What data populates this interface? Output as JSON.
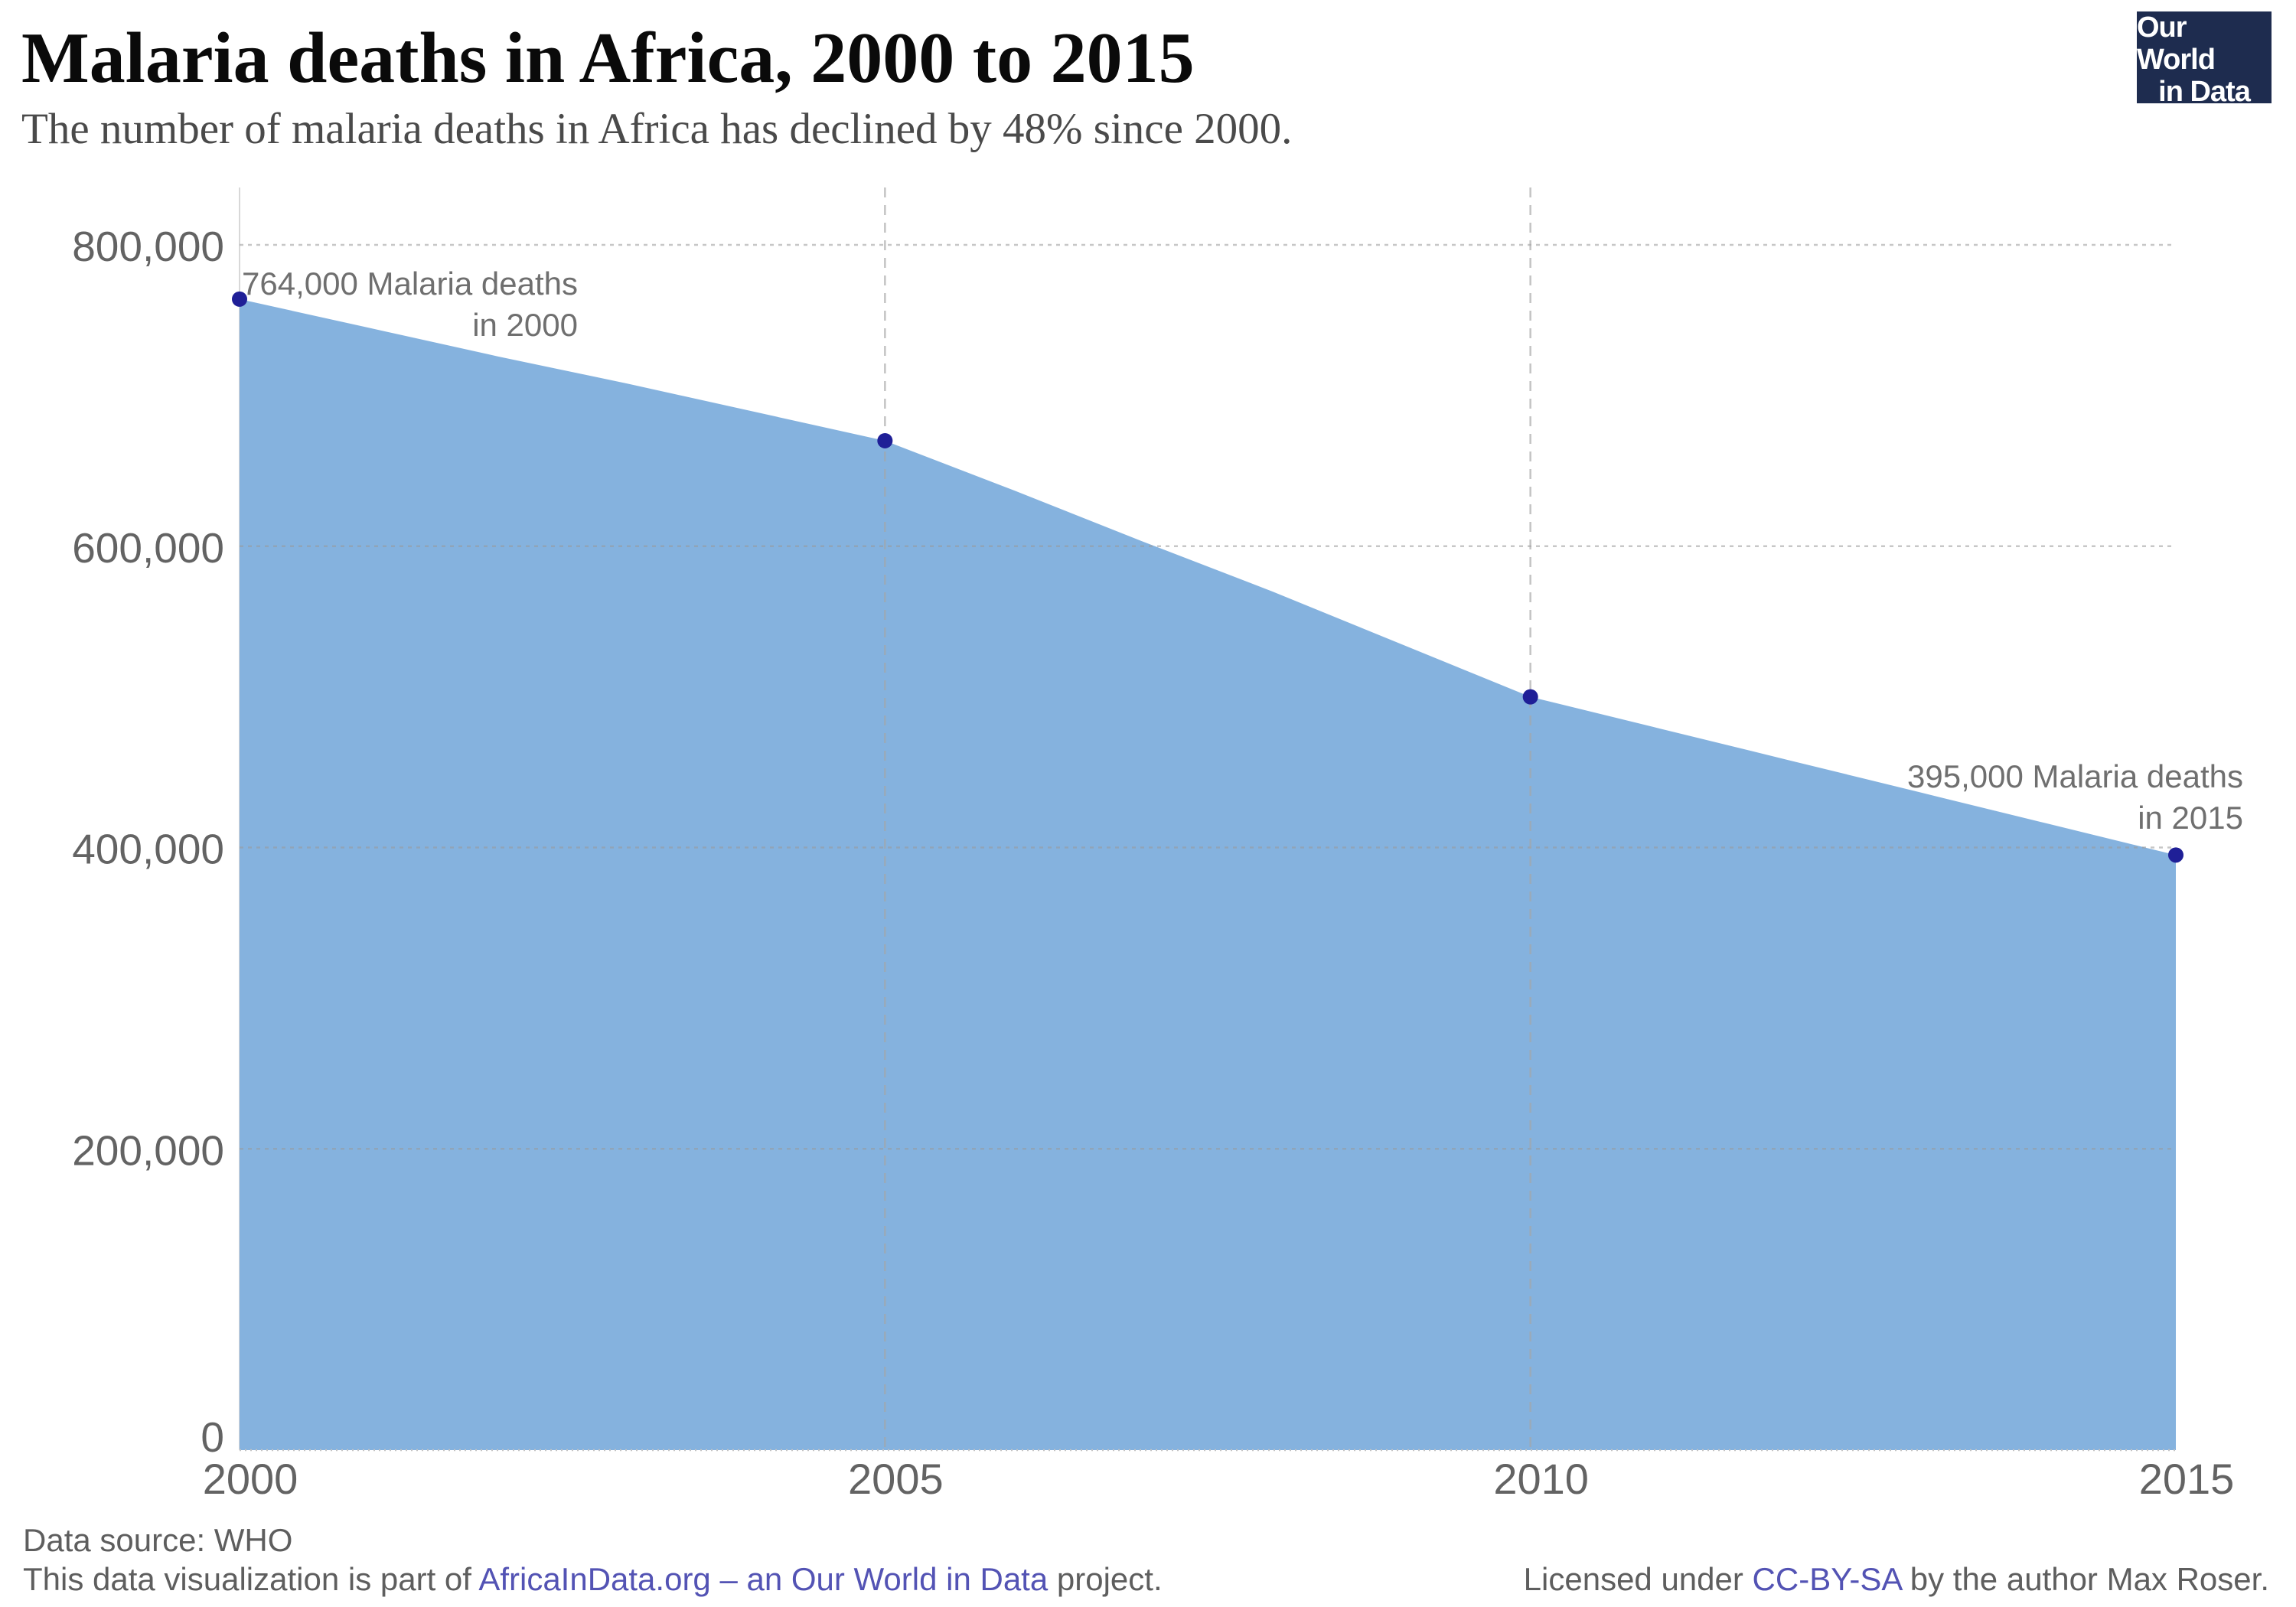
{
  "header": {
    "title": "Malaria deaths in Africa, 2000 to 2015",
    "subtitle": "The number of malaria deaths in Africa has declined by 48% since 2000.",
    "logo": {
      "line1": "Our World",
      "line2": "in Data",
      "bg_color": "#1e2c4f",
      "stripe_color": "#e8432c"
    }
  },
  "chart_data": {
    "type": "area",
    "title": "Malaria deaths in Africa, 2000 to 2015",
    "xlabel": "",
    "ylabel": "",
    "x": [
      2000,
      2001,
      2002,
      2003,
      2004,
      2005,
      2006,
      2007,
      2008,
      2009,
      2010,
      2011,
      2012,
      2013,
      2014,
      2015
    ],
    "series": [
      {
        "name": "Malaria deaths in Africa",
        "values": [
          764000,
          745000,
          726000,
          708000,
          689000,
          670000,
          637000,
          603000,
          570000,
          535000,
          500000,
          479000,
          458000,
          437000,
          416000,
          395000
        ]
      }
    ],
    "ylim": [
      0,
      800000
    ],
    "xlim": [
      2000,
      2015
    ],
    "grid": true,
    "legend": false,
    "yticks": [
      {
        "value": 0,
        "label": "0"
      },
      {
        "value": 200000,
        "label": "200,000"
      },
      {
        "value": 400000,
        "label": "400,000"
      },
      {
        "value": 600000,
        "label": "600,000"
      },
      {
        "value": 800000,
        "label": "800,000"
      }
    ],
    "xticks": [
      {
        "value": 2000,
        "label": "2000"
      },
      {
        "value": 2005,
        "label": "2005"
      },
      {
        "value": 2010,
        "label": "2010"
      },
      {
        "value": 2015,
        "label": "2015"
      }
    ],
    "grid_vertical_years": [
      2005,
      2010
    ],
    "markers": [
      {
        "year": 2000,
        "value": 764000
      },
      {
        "year": 2005,
        "value": 670000
      },
      {
        "year": 2010,
        "value": 500000
      },
      {
        "year": 2015,
        "value": 395000
      }
    ],
    "annotations": [
      {
        "lines": [
          "764,000 Malaria deaths",
          "in 2000"
        ]
      },
      {
        "lines": [
          "395,000 Malaria deaths",
          "in 2015"
        ]
      }
    ],
    "colors": {
      "area": "#85b2de",
      "marker": "#1f1f97",
      "grid": "#9a9a9a",
      "vgrid": "#a6a6a6",
      "axis": "#d8d8d8",
      "baseline": "#c4c4c4",
      "tick_text": "#636363",
      "annotation_text": "#6f6f6f"
    }
  },
  "footer": {
    "source": "Data source: WHO",
    "attribution": {
      "prefix": "This data visualization is part of ",
      "link": "AfricaInData.org – an Our World in Data",
      "suffix": " project."
    },
    "license": {
      "prefix": "Licensed under ",
      "link": "CC-BY-SA",
      "suffix": " by the author Max Roser."
    },
    "link_color": "#5353b4"
  }
}
